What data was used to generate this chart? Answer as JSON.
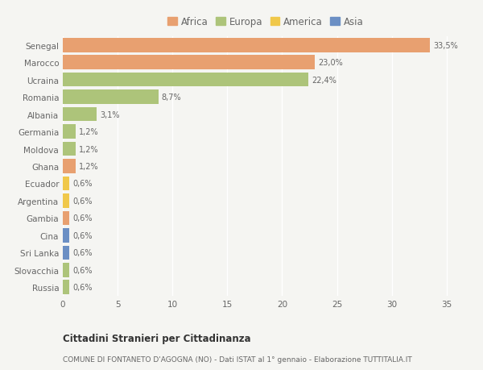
{
  "categories": [
    "Russia",
    "Slovacchia",
    "Sri Lanka",
    "Cina",
    "Gambia",
    "Argentina",
    "Ecuador",
    "Ghana",
    "Moldova",
    "Germania",
    "Albania",
    "Romania",
    "Ucraina",
    "Marocco",
    "Senegal"
  ],
  "values": [
    0.6,
    0.6,
    0.6,
    0.6,
    0.6,
    0.6,
    0.6,
    1.2,
    1.2,
    1.2,
    3.1,
    8.7,
    22.4,
    23.0,
    33.5
  ],
  "labels": [
    "0,6%",
    "0,6%",
    "0,6%",
    "0,6%",
    "0,6%",
    "0,6%",
    "0,6%",
    "1,2%",
    "1,2%",
    "1,2%",
    "3,1%",
    "8,7%",
    "22,4%",
    "23,0%",
    "33,5%"
  ],
  "colors": [
    "#adc47a",
    "#adc47a",
    "#6b8fc4",
    "#6b8fc4",
    "#e8a070",
    "#f0c84a",
    "#f0c84a",
    "#e8a070",
    "#adc47a",
    "#adc47a",
    "#adc47a",
    "#adc47a",
    "#adc47a",
    "#e8a070",
    "#e8a070"
  ],
  "legend_labels": [
    "Africa",
    "Europa",
    "America",
    "Asia"
  ],
  "legend_colors": [
    "#e8a070",
    "#adc47a",
    "#f0c84a",
    "#6b8fc4"
  ],
  "title1": "Cittadini Stranieri per Cittadinanza",
  "title2": "COMUNE DI FONTANETO D'AGOGNA (NO) - Dati ISTAT al 1° gennaio - Elaborazione TUTTITALIA.IT",
  "xlim": [
    0,
    37
  ],
  "background_color": "#f5f5f2",
  "grid_color": "#ffffff",
  "bar_height": 0.82
}
